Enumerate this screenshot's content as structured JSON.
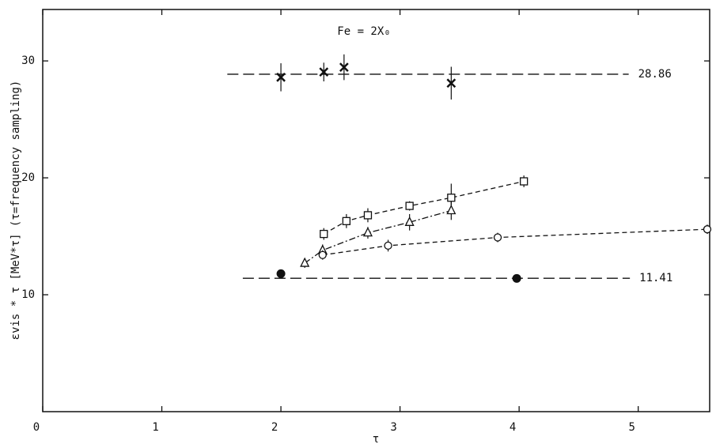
{
  "chart_data": {
    "type": "scatter",
    "annotation": "Fe = 2X₀",
    "x_label": "τ",
    "y_label": "εvis * τ [MeV*τ] (τ=frequency sampling)",
    "xlim": [
      0,
      5.6
    ],
    "ylim": [
      0,
      34.4
    ],
    "xticks": [
      0,
      1,
      2,
      3,
      4,
      5
    ],
    "yticks": [
      10,
      20,
      30
    ],
    "hlines": [
      {
        "y": 28.86,
        "x": [
          1.55,
          4.92
        ]
      },
      {
        "y": 11.41,
        "x": [
          1.68,
          4.93
        ]
      }
    ],
    "series": [
      {
        "marker": "cross",
        "color": "#111111",
        "line": "none",
        "x": [
          2.0,
          2.36,
          2.53,
          3.43
        ],
        "values": [
          28.6,
          29.05,
          29.46,
          28.1
        ],
        "errors": [
          1.2,
          0.8,
          1.1,
          1.4
        ]
      },
      {
        "marker": "square",
        "color": "#111111",
        "line": "dashed",
        "x": [
          2.36,
          2.55,
          2.73,
          3.08,
          3.43,
          4.04
        ],
        "values": [
          15.2,
          16.3,
          16.8,
          17.6,
          18.3,
          19.7
        ],
        "errors": [
          0.5,
          0.6,
          0.6,
          0.4,
          1.2,
          0.5
        ]
      },
      {
        "marker": "triangle",
        "color": "#111111",
        "line": "dashdot",
        "x": [
          2.2,
          2.35,
          2.73,
          3.08,
          3.43
        ],
        "values": [
          12.7,
          13.8,
          15.3,
          16.2,
          17.2
        ],
        "errors": [
          0.4,
          0.5,
          0.5,
          0.7,
          0.8
        ]
      },
      {
        "marker": "circle",
        "color": "#111111",
        "line": "dashed",
        "x": [
          2.35,
          2.9,
          3.82,
          5.58
        ],
        "values": [
          13.4,
          14.2,
          14.9,
          15.6
        ],
        "errors": [
          0.4,
          0.5,
          0.4,
          0.4
        ]
      },
      {
        "marker": "dot",
        "color": "#111111",
        "line": "none",
        "x": [
          2.0,
          3.98
        ],
        "values": [
          11.8,
          11.4
        ]
      }
    ]
  }
}
